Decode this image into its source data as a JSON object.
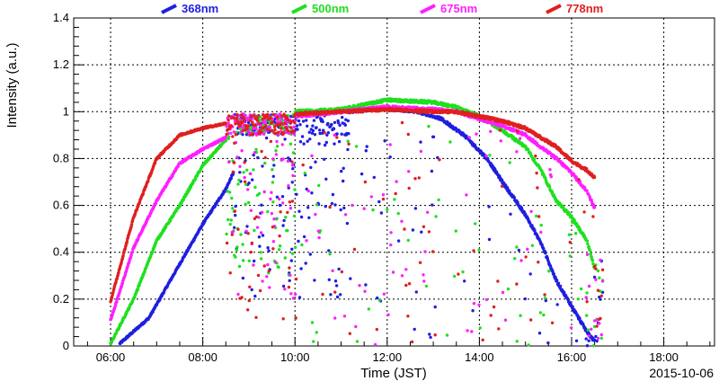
{
  "chart_data": {
    "type": "scatter",
    "title": "",
    "xlabel": "Time (JST)",
    "ylabel": "Intensity (a.u.)",
    "date": "2015-10-06",
    "xlim": [
      "05:12",
      "19:06"
    ],
    "ylim": [
      0,
      1.4
    ],
    "grid": true,
    "legend_position": "top",
    "x_ticks": [
      "06:00",
      "08:00",
      "10:00",
      "12:00",
      "14:00",
      "16:00",
      "18:00"
    ],
    "y_ticks": [
      "0",
      "0.2",
      "0.4",
      "0.6",
      "0.8",
      "1",
      "1.2",
      "1.4"
    ],
    "series": [
      {
        "name": "368nm",
        "color": "#1f1fe0",
        "smooth": [
          [
            "06:12",
            0.01
          ],
          [
            "06:50",
            0.12
          ],
          [
            "07:30",
            0.35
          ],
          [
            "08:00",
            0.52
          ],
          [
            "08:30",
            0.67
          ],
          [
            "08:40",
            0.74
          ]
        ],
        "clear_midday": [
          [
            "11:10",
            1.0
          ],
          [
            "11:40",
            1.01
          ],
          [
            "12:10",
            1.01
          ],
          [
            "12:40",
            1.0
          ],
          [
            "13:10",
            0.97
          ]
        ],
        "afternoon": [
          [
            "13:40",
            0.9
          ],
          [
            "14:10",
            0.8
          ],
          [
            "14:30",
            0.7
          ],
          [
            "15:00",
            0.56
          ],
          [
            "15:20",
            0.44
          ],
          [
            "15:40",
            0.28
          ],
          [
            "16:00",
            0.17
          ],
          [
            "16:20",
            0.06
          ],
          [
            "16:30",
            0.02
          ]
        ],
        "scatter_band": [
          0.2,
          0.95
        ]
      },
      {
        "name": "500nm",
        "color": "#1fe01f",
        "smooth": [
          [
            "06:00",
            0.01
          ],
          [
            "06:30",
            0.2
          ],
          [
            "07:00",
            0.45
          ],
          [
            "07:30",
            0.6
          ],
          [
            "08:00",
            0.77
          ],
          [
            "08:30",
            0.88
          ]
        ],
        "clear_midday": [
          [
            "10:00",
            1.0
          ],
          [
            "11:00",
            1.01
          ],
          [
            "12:00",
            1.05
          ],
          [
            "13:00",
            1.04
          ],
          [
            "13:30",
            1.02
          ]
        ],
        "afternoon": [
          [
            "14:00",
            0.98
          ],
          [
            "14:30",
            0.92
          ],
          [
            "15:00",
            0.85
          ],
          [
            "15:20",
            0.75
          ],
          [
            "15:40",
            0.62
          ],
          [
            "16:00",
            0.55
          ],
          [
            "16:20",
            0.45
          ],
          [
            "16:30",
            0.33
          ]
        ],
        "scatter_band": [
          0.3,
          1.0
        ]
      },
      {
        "name": "675nm",
        "color": "#ff1fff",
        "smooth": [
          [
            "06:00",
            0.11
          ],
          [
            "06:30",
            0.42
          ],
          [
            "07:00",
            0.62
          ],
          [
            "07:30",
            0.78
          ],
          [
            "08:00",
            0.84
          ],
          [
            "08:30",
            0.89
          ]
        ],
        "clear_midday": [
          [
            "10:00",
            0.98
          ],
          [
            "11:00",
            1.0
          ],
          [
            "12:00",
            1.02
          ],
          [
            "13:00",
            1.01
          ],
          [
            "13:30",
            1.0
          ]
        ],
        "afternoon": [
          [
            "14:00",
            0.97
          ],
          [
            "14:30",
            0.94
          ],
          [
            "15:00",
            0.9
          ],
          [
            "15:20",
            0.85
          ],
          [
            "15:40",
            0.8
          ],
          [
            "16:00",
            0.74
          ],
          [
            "16:20",
            0.66
          ],
          [
            "16:30",
            0.59
          ]
        ],
        "scatter_band": [
          0.2,
          1.0
        ]
      },
      {
        "name": "778nm",
        "color": "#e01f1f",
        "smooth": [
          [
            "06:00",
            0.19
          ],
          [
            "06:30",
            0.55
          ],
          [
            "07:00",
            0.8
          ],
          [
            "07:30",
            0.9
          ],
          [
            "08:00",
            0.93
          ],
          [
            "08:30",
            0.95
          ]
        ],
        "clear_midday": [
          [
            "10:00",
            0.99
          ],
          [
            "11:00",
            1.0
          ],
          [
            "12:00",
            1.01
          ],
          [
            "13:00",
            1.0
          ],
          [
            "13:30",
            1.0
          ]
        ],
        "afternoon": [
          [
            "14:00",
            0.98
          ],
          [
            "14:30",
            0.96
          ],
          [
            "15:00",
            0.93
          ],
          [
            "15:20",
            0.89
          ],
          [
            "15:40",
            0.85
          ],
          [
            "16:00",
            0.79
          ],
          [
            "16:20",
            0.75
          ],
          [
            "16:30",
            0.72
          ]
        ],
        "scatter_band": [
          0.1,
          1.0
        ]
      }
    ]
  }
}
